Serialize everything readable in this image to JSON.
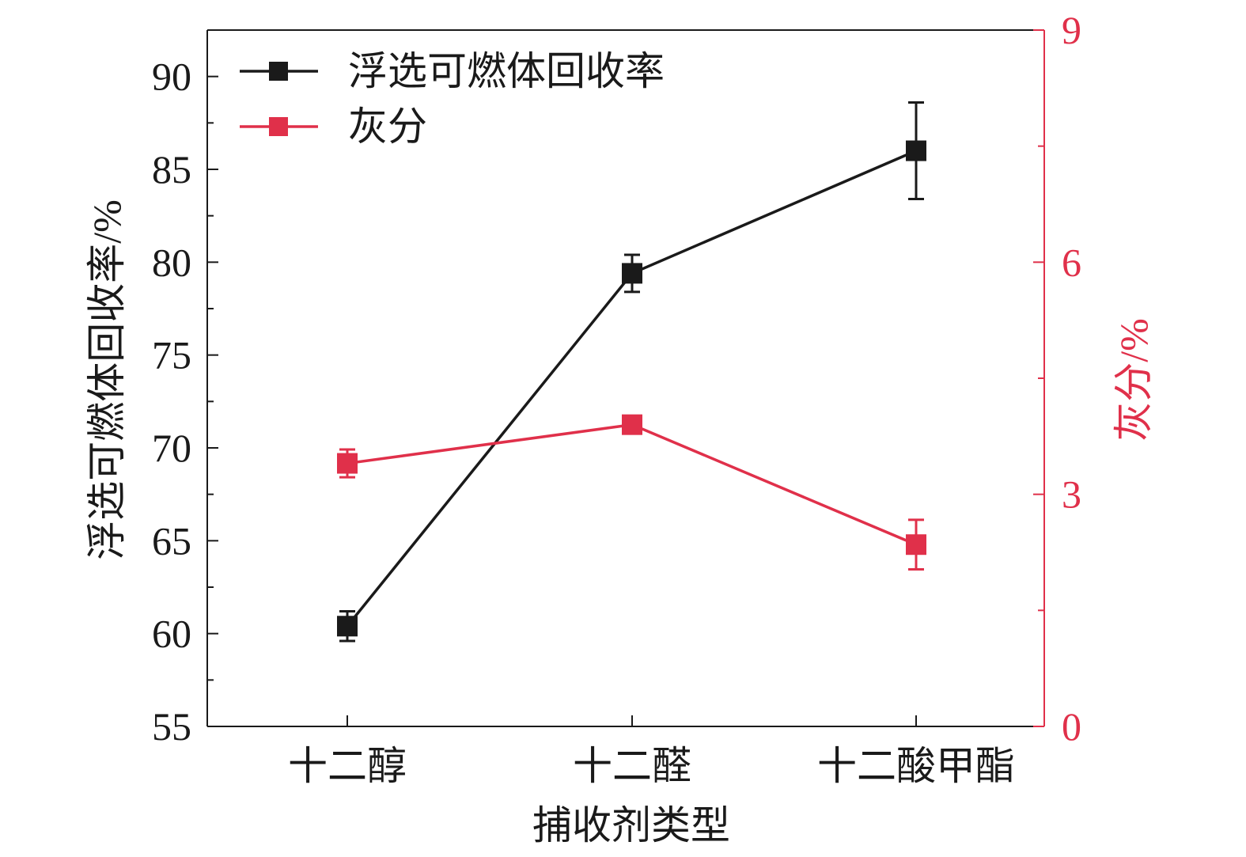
{
  "chart_data": {
    "type": "line",
    "categories": [
      "十二醇",
      "十二醛",
      "十二酸甲酯"
    ],
    "xlabel": "捕收剂类型",
    "ylabel_left": "浮选可燃体回收率/%",
    "ylabel_right": "灰分/%",
    "ylim_left": [
      55,
      92.5
    ],
    "ylim_right": [
      0,
      9
    ],
    "yticks_left": [
      "55",
      "60",
      "65",
      "70",
      "75",
      "80",
      "85",
      "90"
    ],
    "yticks_right": [
      "0",
      "3",
      "6",
      "9"
    ],
    "legend_position": "top-left",
    "series": [
      {
        "name": "浮选可燃体回收率",
        "axis": "left",
        "color": "#1a1a1a",
        "values": [
          60.4,
          79.4,
          86.0
        ],
        "errors": [
          0.8,
          1.0,
          2.6
        ]
      },
      {
        "name": "灰分",
        "axis": "right",
        "color": "#e0304a",
        "values": [
          3.4,
          3.9,
          2.35
        ],
        "errors": [
          0.18,
          0.08,
          0.32
        ]
      }
    ]
  }
}
